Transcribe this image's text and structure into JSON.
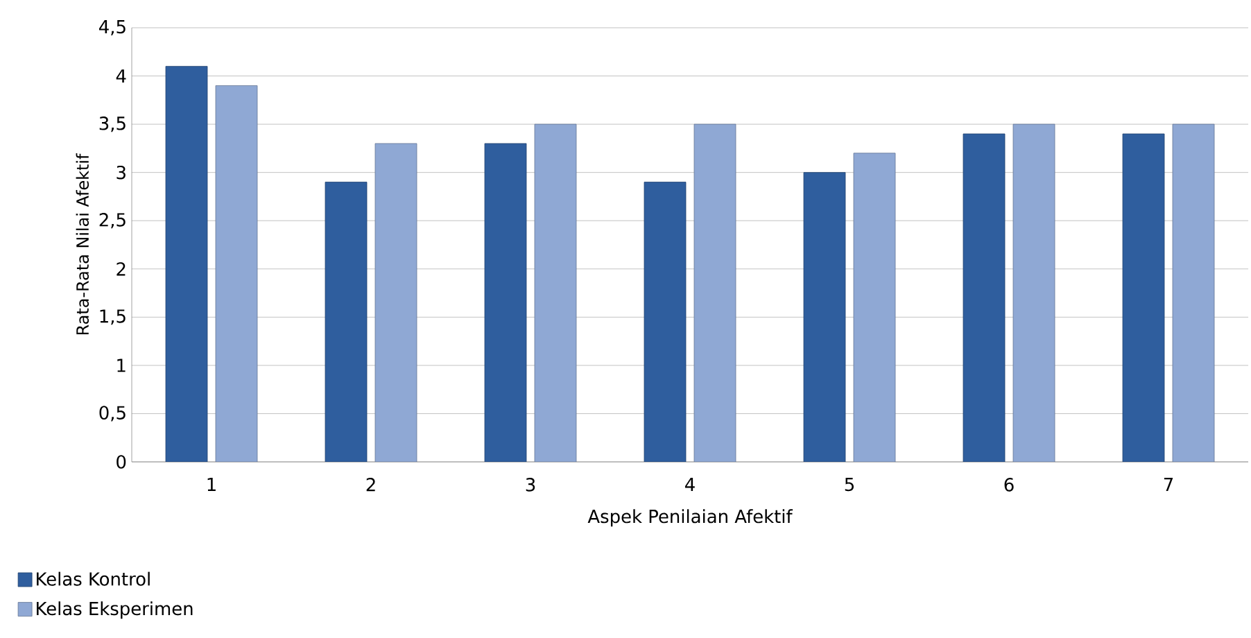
{
  "chart_data": {
    "type": "bar",
    "xlabel": "Aspek Penilaian Afektif",
    "ylabel": "Rata-Rata Nilai Afektif",
    "categories": [
      "1",
      "2",
      "3",
      "4",
      "5",
      "6",
      "7"
    ],
    "series": [
      {
        "name": "Kelas Kontrol",
        "color": "#2f5e9e",
        "values": [
          4.1,
          2.9,
          3.3,
          2.9,
          3.0,
          3.4,
          3.4
        ]
      },
      {
        "name": "Kelas Eksperimen",
        "color": "#8fa8d4",
        "values": [
          3.9,
          3.3,
          3.5,
          3.5,
          3.2,
          3.5,
          3.5
        ]
      }
    ],
    "ylim": [
      0,
      4.5
    ],
    "yticks": [
      0,
      {
        "value": 0.5,
        "label": "0,5"
      },
      1,
      {
        "value": 1.5,
        "label": "1,5"
      },
      2,
      {
        "value": 2.5,
        "label": "2,5"
      },
      3,
      {
        "value": 3.5,
        "label": "3,5"
      },
      4,
      {
        "value": 4.5,
        "label": "4,5"
      }
    ],
    "grid": "y",
    "legend": "bottom left"
  }
}
